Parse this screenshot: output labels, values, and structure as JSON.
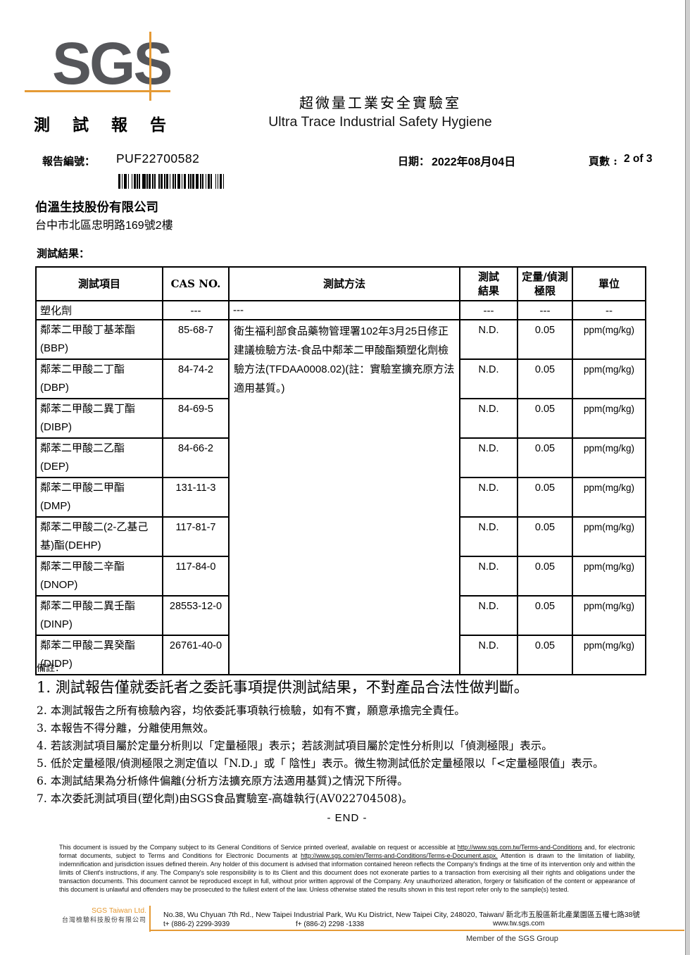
{
  "colors": {
    "accent_orange": "#e59a35",
    "logo_gray": "#55565a"
  },
  "header": {
    "logo": "SGS",
    "report_title": "測 試 報 告",
    "lab_title_cn": "超微量工業安全實驗室",
    "lab_title_en": "Ultra Trace Industrial Safety Hygiene"
  },
  "meta": {
    "report_no_label": "報告編號：",
    "report_no": "PUF22700582",
    "date_label": "日期：",
    "date_value": "2022年08月04日",
    "page_label": "頁數 :",
    "page_value": "2 of 3"
  },
  "client": {
    "name": "伯溫生技股份有限公司",
    "address": "台中市北區忠明路169號2樓"
  },
  "section": {
    "results_label": "測試結果："
  },
  "table": {
    "header": {
      "item": "測試項目",
      "cas": "CAS NO.",
      "method": "測試方法",
      "result_line1": "測試",
      "result_line2": "結果",
      "limit_line1": "定量/偵測",
      "limit_line2": "極限",
      "unit": "單位"
    },
    "category": {
      "item": "塑化劑",
      "cas": "---",
      "method": "---",
      "result": "---",
      "limit": "---",
      "unit": "--"
    },
    "method_text": "衛生福利部食品藥物管理署102年3月25日修正建議檢驗方法-食品中鄰苯二甲酸酯類塑化劑檢驗方法(TFDAA0008.02)(註：實驗室擴充原方法適用基質。)",
    "rows": [
      {
        "item": "鄰苯二甲酸丁基苯酯",
        "code": "(BBP)",
        "cas": "85-68-7",
        "result": "N.D.",
        "limit": "0.05",
        "unit": "ppm(mg/kg)"
      },
      {
        "item": "鄰苯二甲酸二丁酯",
        "code": "(DBP)",
        "cas": "84-74-2",
        "result": "N.D.",
        "limit": "0.05",
        "unit": "ppm(mg/kg)"
      },
      {
        "item": "鄰苯二甲酸二異丁酯",
        "code": "(DIBP)",
        "cas": "84-69-5",
        "result": "N.D.",
        "limit": "0.05",
        "unit": "ppm(mg/kg)"
      },
      {
        "item": "鄰苯二甲酸二乙酯",
        "code": "(DEP)",
        "cas": "84-66-2",
        "result": "N.D.",
        "limit": "0.05",
        "unit": "ppm(mg/kg)"
      },
      {
        "item": "鄰苯二甲酸二甲酯",
        "code": "(DMP)",
        "cas": "131-11-3",
        "result": "N.D.",
        "limit": "0.05",
        "unit": "ppm(mg/kg)"
      },
      {
        "item": "鄰苯二甲酸二(2-乙基己",
        "code": "基)酯(DEHP)",
        "cas": "117-81-7",
        "result": "N.D.",
        "limit": "0.05",
        "unit": "ppm(mg/kg)"
      },
      {
        "item": "鄰苯二甲酸二辛酯",
        "code": "(DNOP)",
        "cas": "117-84-0",
        "result": "N.D.",
        "limit": "0.05",
        "unit": "ppm(mg/kg)"
      },
      {
        "item": "鄰苯二甲酸二異壬酯",
        "code": "(DINP)",
        "cas": "28553-12-0",
        "result": "N.D.",
        "limit": "0.05",
        "unit": "ppm(mg/kg)"
      },
      {
        "item": "鄰苯二甲酸二異癸酯",
        "code": "(DIDP)",
        "cas": "26761-40-0",
        "result": "N.D.",
        "limit": "0.05",
        "unit": "ppm(mg/kg)"
      }
    ]
  },
  "notes": {
    "label": "備註：",
    "items": [
      "1. 測試報告僅就委託者之委託事項提供測試結果，不對產品合法性做判斷。",
      "2. 本測試報告之所有檢驗內容，均依委託事項執行檢驗，如有不實，願意承擔完全責任。",
      "3. 本報告不得分離，分離使用無效。",
      "4. 若該測試項目屬於定量分析則以「定量極限」表示；若該測試項目屬於定性分析則以「偵測極限」表示。",
      "5. 低於定量極限/偵測極限之測定值以「N.D.」或「 陰性」表示。微生物測試低於定量極限以「<定量極限值」表示。",
      "6. 本測試結果為分析條件偏離(分析方法擴充原方法適用基質)之情況下所得。",
      "7. 本次委託測試項目(塑化劑)由SGS食品實驗室-高雄執行(AV022704508)。"
    ],
    "end_label": "- END -"
  },
  "legal": {
    "part1": "This document is issued by the Company subject to its General Conditions of Service printed overleaf, available on request or accessible at ",
    "link1": "http://www.sgs.com.tw/Terms-and-Conditions",
    "part2": " and, for electronic format documents, subject to Terms and Conditions for Electronic Documents at ",
    "link2": "http://www.sgs.com/en/Terms-and-Conditions/Terms-e-Document.aspx.",
    "part3": " Attention is drawn to the limitation of liability, indemnification and jurisdiction issues defined therein. Any holder of this document is advised that information contained hereon reflects the Company's findings at the time of its intervention only and within the limits of Client's instructions, if any. The Company's sole responsibility is to its Client and this document does not exonerate parties to a transaction from exercising all their rights and obligations under the transaction documents. This document cannot be reproduced except in full, without prior written approval of the Company. Any unauthorized alteration, forgery or falsification of the content or appearance of this document is unlawful and offenders may be prosecuted to the fullest extent of the law. Unless otherwise stated the results shown in this test report refer only to the sample(s) tested."
  },
  "footer": {
    "company_en": "SGS Taiwan Ltd.",
    "company_cn": "台灣檢驗科技股份有限公司",
    "address": "No.38, Wu Chyuan 7th Rd., New Taipei Industrial Park, Wu Ku District, New Taipei City, 248020, Taiwan/ 新北市五股區新北產業園區五權七路38號",
    "tel": "t+ (886-2) 2299-3939",
    "fax": "f+ (886-2) 2298 -1338",
    "web": "www.tw.sgs.com",
    "member": "Member of the SGS Group"
  }
}
